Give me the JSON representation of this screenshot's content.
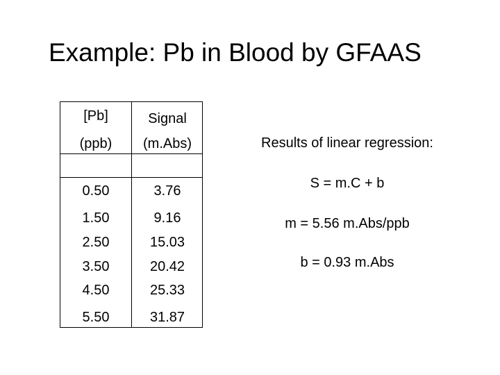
{
  "title": "Example:  Pb in Blood by GFAAS",
  "table": {
    "headers": [
      {
        "line1": "[Pb]",
        "line2": "(ppb)"
      },
      {
        "line1": "Signal",
        "line2": "(m.Abs)"
      }
    ],
    "rows": [
      {
        "conc": "0.50",
        "signal": "3.76"
      },
      {
        "conc": "1.50",
        "signal": "9.16"
      },
      {
        "conc": "2.50",
        "signal": "15.03"
      },
      {
        "conc": "3.50",
        "signal": "20.42"
      },
      {
        "conc": "4.50",
        "signal": "25.33"
      },
      {
        "conc": "5.50",
        "signal": "31.87"
      }
    ]
  },
  "results": {
    "heading": "Results of linear regression:",
    "equation": "S = m.C + b",
    "slope": "m = 5.56 m.Abs/ppb",
    "intercept": "b = 0.93 m.Abs"
  }
}
